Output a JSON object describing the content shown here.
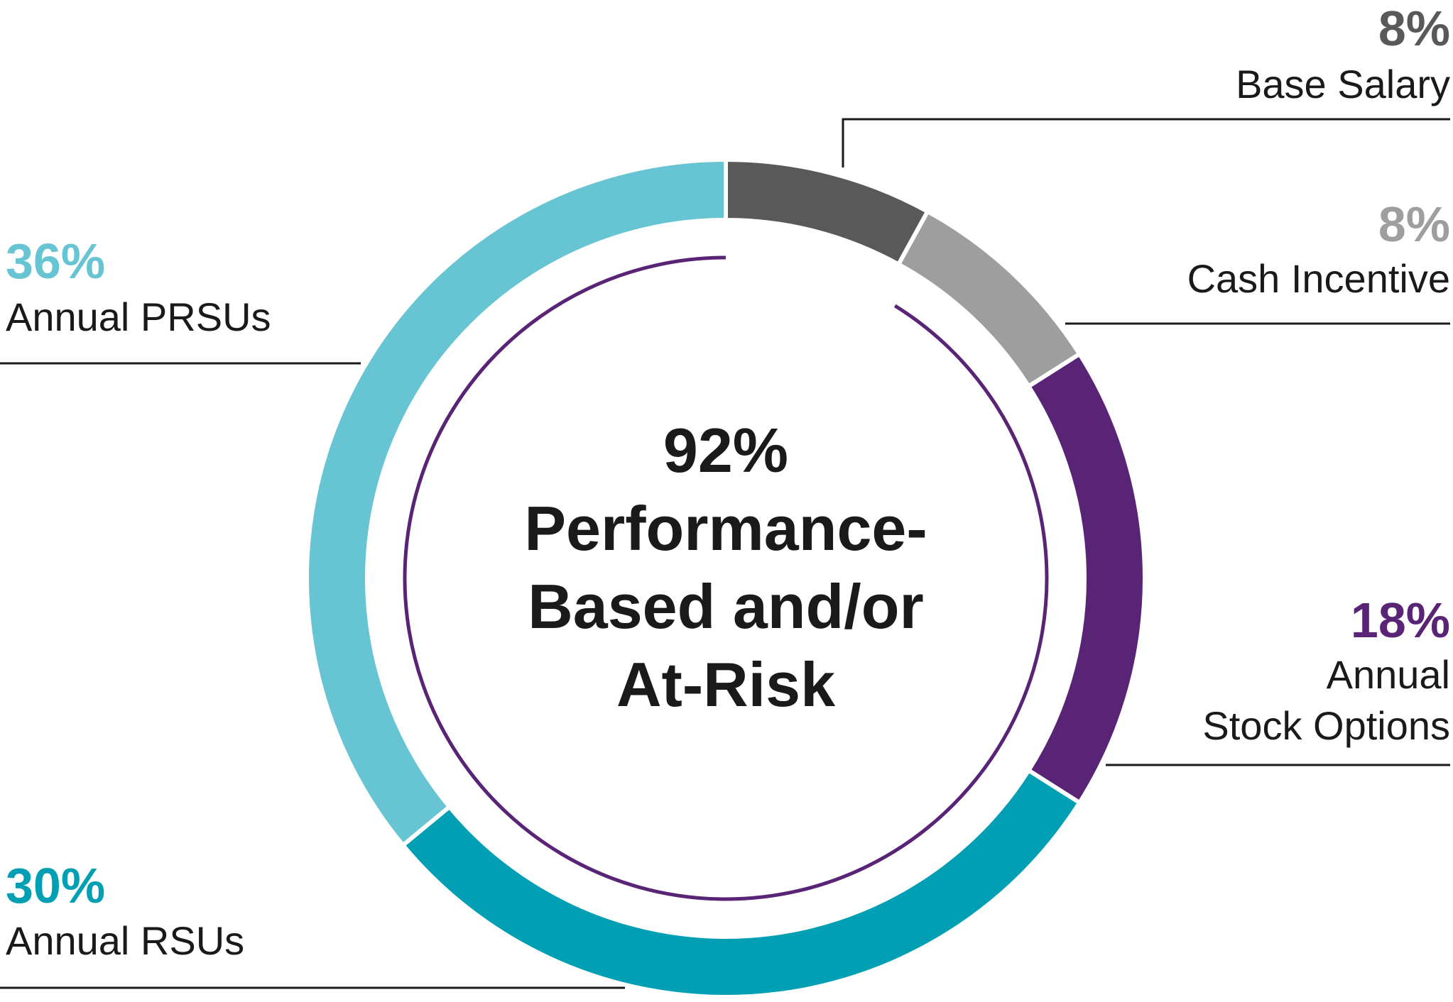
{
  "chart_data": {
    "type": "pie",
    "style": "donut",
    "center_text": {
      "percent": "92%",
      "lines": [
        "Performance-",
        "Based and/or",
        "At-Risk"
      ]
    },
    "slices": [
      {
        "label": "Base Salary",
        "value": 8,
        "value_label": "8%",
        "color": "#595959"
      },
      {
        "label": "Cash Incentive",
        "value": 8,
        "value_label": "8%",
        "color": "#9e9e9e"
      },
      {
        "label_lines": [
          "Annual",
          "Stock Options"
        ],
        "value": 18,
        "value_label": "18%",
        "color": "#5a2476"
      },
      {
        "label": "Annual RSUs",
        "value": 30,
        "value_label": "30%",
        "color": "#009fb3"
      },
      {
        "label": "Annual PRSUs",
        "value": 36,
        "value_label": "36%",
        "color": "#67c4d2"
      }
    ],
    "inner_ring": {
      "color": "#5a2476",
      "value": 92
    }
  }
}
